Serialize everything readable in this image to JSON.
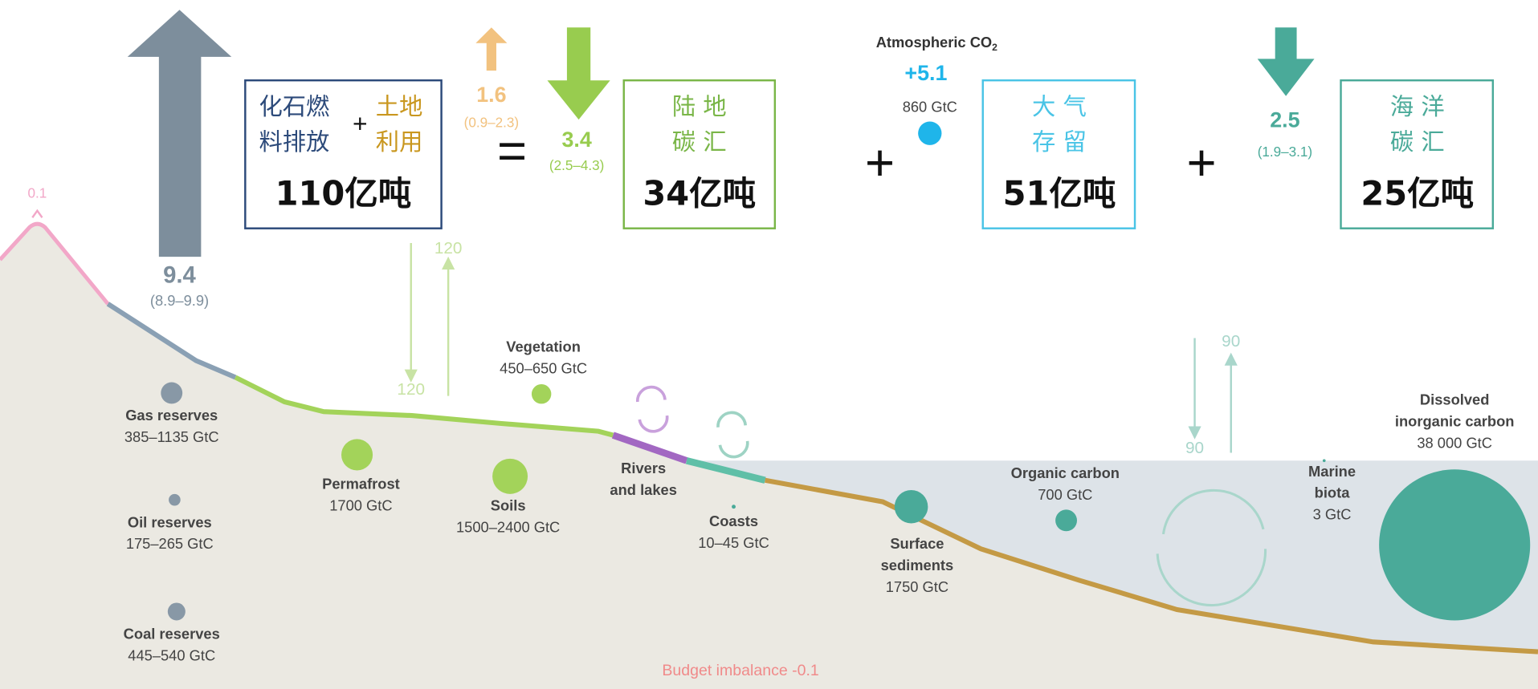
{
  "peak_label": "0.1",
  "fluxes": {
    "fossil": {
      "value": "9.4",
      "range": "(8.9–9.9)"
    },
    "land_use": {
      "value": "1.6",
      "range": "(0.9–2.3)"
    },
    "land_sink": {
      "value": "3.4",
      "range": "(2.5–4.3)"
    },
    "ocean_sink": {
      "value": "2.5",
      "range": "(1.9–3.1)"
    }
  },
  "atmosphere": {
    "label": "Atmospheric CO",
    "subscript": "2",
    "growth": "+5.1",
    "stock": "860 GtC"
  },
  "boxes": [
    {
      "lines": [
        "化石燃",
        "料排放"
      ],
      "plus": "+",
      "lines_b": [
        "土地",
        "利用"
      ],
      "amount": "110亿吨"
    },
    {
      "lines": [
        "陆 地",
        "碳 汇"
      ],
      "amount": "34亿吨"
    },
    {
      "lines": [
        "大 气",
        "存 留"
      ],
      "amount": "51亿吨"
    },
    {
      "lines": [
        "海 洋",
        "碳 汇"
      ],
      "amount": "25亿吨"
    }
  ],
  "operators": [
    "=",
    "+",
    "+"
  ],
  "exchanges": [
    "120",
    "120",
    "90",
    "90"
  ],
  "reservoirs": [
    {
      "name": [
        "Gas reserves"
      ],
      "amount": "385–1135 GtC"
    },
    {
      "name": [
        "Oil reserves"
      ],
      "amount": "175–265 GtC"
    },
    {
      "name": [
        "Coal reserves"
      ],
      "amount": "445–540 GtC"
    },
    {
      "name": [
        "Permafrost"
      ],
      "amount": "1700 GtC"
    },
    {
      "name": [
        "Vegetation"
      ],
      "amount": "450–650 GtC"
    },
    {
      "name": [
        "Soils"
      ],
      "amount": "1500–2400 GtC"
    },
    {
      "name": [
        "Rivers",
        "and lakes"
      ]
    },
    {
      "name": [
        "Coasts"
      ],
      "amount": "10–45 GtC"
    },
    {
      "name": [
        "Surface",
        "sediments"
      ],
      "amount": "1750 GtC"
    },
    {
      "name": [
        "Organic carbon"
      ],
      "amount": "700 GtC"
    },
    {
      "name": [
        "Marine",
        "biota"
      ],
      "amount": "3 GtC"
    },
    {
      "name": [
        "Dissolved",
        "inorganic carbon"
      ],
      "amount": "38 000 GtC"
    }
  ],
  "imbalance": "Budget imbalance -0.1"
}
